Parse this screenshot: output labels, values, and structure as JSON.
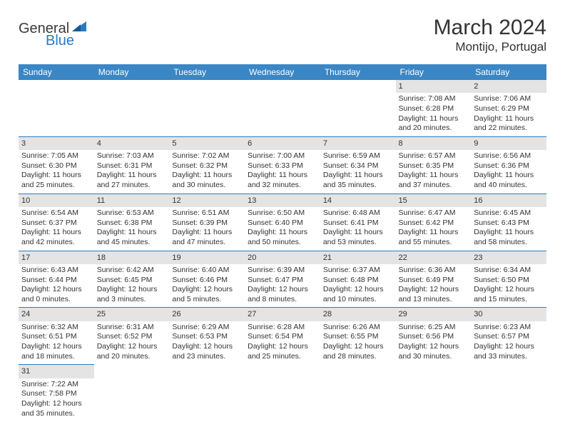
{
  "logo": {
    "primary": "General",
    "secondary": "Blue"
  },
  "title": "March 2024",
  "location": "Montijo, Portugal",
  "colors": {
    "header_bg": "#3b86c4",
    "header_text": "#ffffff",
    "cell_border": "#2b7bbf",
    "daynum_bg": "#e4e4e4",
    "text": "#333333",
    "logo_gray": "#3a3a3a",
    "logo_blue": "#2b7bbf"
  },
  "weekdays": [
    "Sunday",
    "Monday",
    "Tuesday",
    "Wednesday",
    "Thursday",
    "Friday",
    "Saturday"
  ],
  "weeks": [
    [
      null,
      null,
      null,
      null,
      null,
      {
        "n": "1",
        "sr": "Sunrise: 7:08 AM",
        "ss": "Sunset: 6:28 PM",
        "dl": "Daylight: 11 hours and 20 minutes."
      },
      {
        "n": "2",
        "sr": "Sunrise: 7:06 AM",
        "ss": "Sunset: 6:29 PM",
        "dl": "Daylight: 11 hours and 22 minutes."
      }
    ],
    [
      {
        "n": "3",
        "sr": "Sunrise: 7:05 AM",
        "ss": "Sunset: 6:30 PM",
        "dl": "Daylight: 11 hours and 25 minutes."
      },
      {
        "n": "4",
        "sr": "Sunrise: 7:03 AM",
        "ss": "Sunset: 6:31 PM",
        "dl": "Daylight: 11 hours and 27 minutes."
      },
      {
        "n": "5",
        "sr": "Sunrise: 7:02 AM",
        "ss": "Sunset: 6:32 PM",
        "dl": "Daylight: 11 hours and 30 minutes."
      },
      {
        "n": "6",
        "sr": "Sunrise: 7:00 AM",
        "ss": "Sunset: 6:33 PM",
        "dl": "Daylight: 11 hours and 32 minutes."
      },
      {
        "n": "7",
        "sr": "Sunrise: 6:59 AM",
        "ss": "Sunset: 6:34 PM",
        "dl": "Daylight: 11 hours and 35 minutes."
      },
      {
        "n": "8",
        "sr": "Sunrise: 6:57 AM",
        "ss": "Sunset: 6:35 PM",
        "dl": "Daylight: 11 hours and 37 minutes."
      },
      {
        "n": "9",
        "sr": "Sunrise: 6:56 AM",
        "ss": "Sunset: 6:36 PM",
        "dl": "Daylight: 11 hours and 40 minutes."
      }
    ],
    [
      {
        "n": "10",
        "sr": "Sunrise: 6:54 AM",
        "ss": "Sunset: 6:37 PM",
        "dl": "Daylight: 11 hours and 42 minutes."
      },
      {
        "n": "11",
        "sr": "Sunrise: 6:53 AM",
        "ss": "Sunset: 6:38 PM",
        "dl": "Daylight: 11 hours and 45 minutes."
      },
      {
        "n": "12",
        "sr": "Sunrise: 6:51 AM",
        "ss": "Sunset: 6:39 PM",
        "dl": "Daylight: 11 hours and 47 minutes."
      },
      {
        "n": "13",
        "sr": "Sunrise: 6:50 AM",
        "ss": "Sunset: 6:40 PM",
        "dl": "Daylight: 11 hours and 50 minutes."
      },
      {
        "n": "14",
        "sr": "Sunrise: 6:48 AM",
        "ss": "Sunset: 6:41 PM",
        "dl": "Daylight: 11 hours and 53 minutes."
      },
      {
        "n": "15",
        "sr": "Sunrise: 6:47 AM",
        "ss": "Sunset: 6:42 PM",
        "dl": "Daylight: 11 hours and 55 minutes."
      },
      {
        "n": "16",
        "sr": "Sunrise: 6:45 AM",
        "ss": "Sunset: 6:43 PM",
        "dl": "Daylight: 11 hours and 58 minutes."
      }
    ],
    [
      {
        "n": "17",
        "sr": "Sunrise: 6:43 AM",
        "ss": "Sunset: 6:44 PM",
        "dl": "Daylight: 12 hours and 0 minutes."
      },
      {
        "n": "18",
        "sr": "Sunrise: 6:42 AM",
        "ss": "Sunset: 6:45 PM",
        "dl": "Daylight: 12 hours and 3 minutes."
      },
      {
        "n": "19",
        "sr": "Sunrise: 6:40 AM",
        "ss": "Sunset: 6:46 PM",
        "dl": "Daylight: 12 hours and 5 minutes."
      },
      {
        "n": "20",
        "sr": "Sunrise: 6:39 AM",
        "ss": "Sunset: 6:47 PM",
        "dl": "Daylight: 12 hours and 8 minutes."
      },
      {
        "n": "21",
        "sr": "Sunrise: 6:37 AM",
        "ss": "Sunset: 6:48 PM",
        "dl": "Daylight: 12 hours and 10 minutes."
      },
      {
        "n": "22",
        "sr": "Sunrise: 6:36 AM",
        "ss": "Sunset: 6:49 PM",
        "dl": "Daylight: 12 hours and 13 minutes."
      },
      {
        "n": "23",
        "sr": "Sunrise: 6:34 AM",
        "ss": "Sunset: 6:50 PM",
        "dl": "Daylight: 12 hours and 15 minutes."
      }
    ],
    [
      {
        "n": "24",
        "sr": "Sunrise: 6:32 AM",
        "ss": "Sunset: 6:51 PM",
        "dl": "Daylight: 12 hours and 18 minutes."
      },
      {
        "n": "25",
        "sr": "Sunrise: 6:31 AM",
        "ss": "Sunset: 6:52 PM",
        "dl": "Daylight: 12 hours and 20 minutes."
      },
      {
        "n": "26",
        "sr": "Sunrise: 6:29 AM",
        "ss": "Sunset: 6:53 PM",
        "dl": "Daylight: 12 hours and 23 minutes."
      },
      {
        "n": "27",
        "sr": "Sunrise: 6:28 AM",
        "ss": "Sunset: 6:54 PM",
        "dl": "Daylight: 12 hours and 25 minutes."
      },
      {
        "n": "28",
        "sr": "Sunrise: 6:26 AM",
        "ss": "Sunset: 6:55 PM",
        "dl": "Daylight: 12 hours and 28 minutes."
      },
      {
        "n": "29",
        "sr": "Sunrise: 6:25 AM",
        "ss": "Sunset: 6:56 PM",
        "dl": "Daylight: 12 hours and 30 minutes."
      },
      {
        "n": "30",
        "sr": "Sunrise: 6:23 AM",
        "ss": "Sunset: 6:57 PM",
        "dl": "Daylight: 12 hours and 33 minutes."
      }
    ],
    [
      {
        "n": "31",
        "sr": "Sunrise: 7:22 AM",
        "ss": "Sunset: 7:58 PM",
        "dl": "Daylight: 12 hours and 35 minutes."
      },
      null,
      null,
      null,
      null,
      null,
      null
    ]
  ]
}
